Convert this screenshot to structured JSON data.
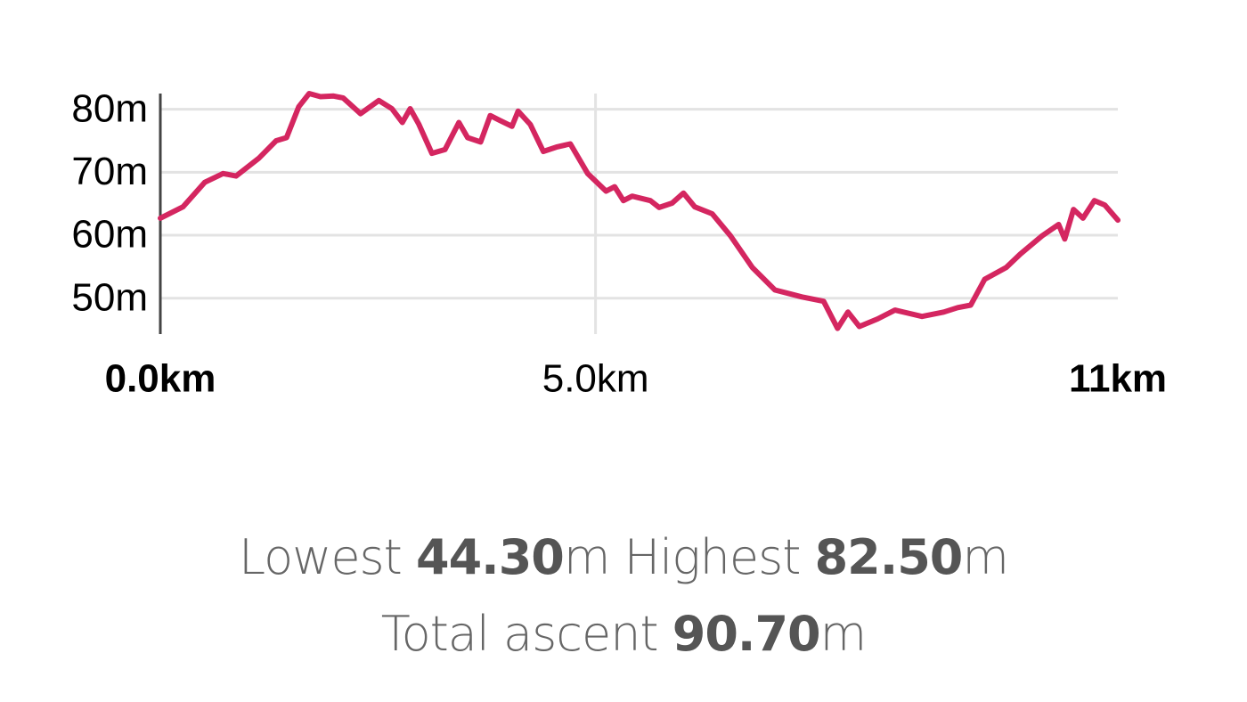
{
  "chart_data": {
    "type": "line",
    "color": "#d42660",
    "grid": true,
    "x": [
      0,
      0.26,
      0.51,
      0.72,
      0.87,
      1.13,
      1.33,
      1.45,
      1.59,
      1.71,
      1.84,
      1.99,
      2.1,
      2.3,
      2.51,
      2.66,
      2.78,
      2.87,
      2.97,
      3.12,
      3.27,
      3.43,
      3.53,
      3.68,
      3.79,
      3.89,
      4.04,
      4.11,
      4.25,
      4.4,
      4.55,
      4.71,
      4.91,
      5.12,
      5.22,
      5.32,
      5.42,
      5.63,
      5.73,
      5.88,
      6.01,
      6.14,
      6.34,
      6.55,
      6.8,
      7.06,
      7.37,
      7.62,
      7.78,
      7.9,
      8.03,
      8.24,
      8.44,
      8.75,
      9.0,
      9.16,
      9.31,
      9.47,
      9.72,
      9.88,
      10.13,
      10.32,
      10.39,
      10.49,
      10.6,
      10.73,
      10.85,
      11.0
    ],
    "values": [
      62.7,
      64.5,
      68.4,
      69.8,
      69.4,
      72.2,
      75.0,
      75.5,
      80.4,
      82.5,
      82.0,
      82.1,
      81.8,
      79.3,
      81.4,
      80.1,
      77.9,
      80.1,
      77.6,
      73.0,
      73.6,
      77.9,
      75.5,
      74.8,
      79.0,
      78.3,
      77.3,
      79.7,
      77.6,
      73.3,
      74.0,
      74.5,
      69.8,
      67.0,
      67.7,
      65.5,
      66.2,
      65.5,
      64.4,
      65.1,
      66.7,
      64.5,
      63.4,
      59.9,
      54.9,
      51.3,
      50.2,
      49.5,
      45.2,
      47.8,
      45.5,
      46.7,
      48.1,
      47.1,
      47.8,
      48.5,
      48.9,
      53.0,
      54.9,
      57.0,
      59.9,
      61.7,
      59.4,
      64.1,
      62.7,
      65.5,
      64.8,
      62.4
    ],
    "xlim": [
      0,
      11
    ],
    "ylim": [
      44.3,
      82.5
    ],
    "xticks": [
      {
        "value": 0,
        "label": "0.0km"
      },
      {
        "value": 5,
        "label": "5.0km"
      },
      {
        "value": 11,
        "label": "11km"
      }
    ],
    "yticks": [
      {
        "value": 50,
        "label": "50m"
      },
      {
        "value": 60,
        "label": "60m"
      },
      {
        "value": 70,
        "label": "70m"
      },
      {
        "value": 80,
        "label": "80m"
      }
    ]
  },
  "stats": [
    {
      "label": "Lowest",
      "value": "44.30",
      "unit": "m"
    },
    {
      "label": "Highest",
      "value": "82.50",
      "unit": "m"
    },
    {
      "label": "Total ascent",
      "value": "90.70",
      "unit": "m"
    }
  ]
}
